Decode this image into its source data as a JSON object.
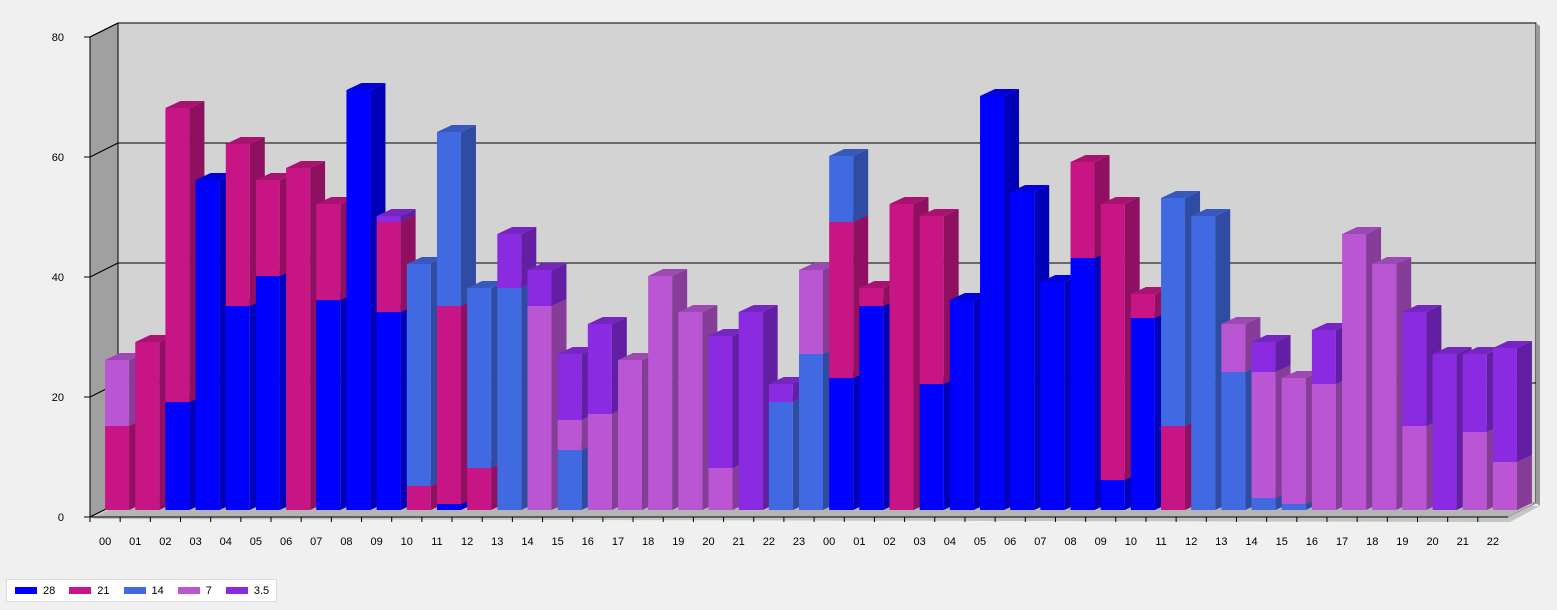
{
  "chart_data": {
    "type": "bar",
    "stacked": true,
    "three_d": true,
    "title": "",
    "xlabel": "",
    "ylabel": "",
    "ylim": [
      0,
      80
    ],
    "yticks": [
      0,
      20,
      40,
      60,
      80
    ],
    "grid": true,
    "legend_position": "bottom-left",
    "categories": [
      "00",
      "01",
      "02",
      "03",
      "04",
      "05",
      "06",
      "07",
      "08",
      "09",
      "10",
      "11",
      "12",
      "13",
      "14",
      "15",
      "16",
      "17",
      "18",
      "19",
      "20",
      "21",
      "22",
      "23",
      "00",
      "01",
      "02",
      "03",
      "04",
      "05",
      "06",
      "07",
      "08",
      "09",
      "10",
      "11",
      "12",
      "13",
      "14",
      "15",
      "16",
      "17",
      "18",
      "19",
      "20",
      "21",
      "22"
    ],
    "series": [
      {
        "name": "28",
        "color": "#0000ff",
        "values": [
          0,
          0,
          18,
          55,
          34,
          39,
          0,
          35,
          70,
          33,
          0,
          1,
          0,
          0,
          0,
          0,
          0,
          0,
          0,
          0,
          0,
          0,
          0,
          0,
          22,
          34,
          0,
          21,
          35,
          69,
          53,
          38,
          42,
          5,
          32,
          0,
          0,
          0,
          0,
          0,
          0,
          0,
          0,
          0,
          0,
          0,
          0
        ]
      },
      {
        "name": "21",
        "color": "#c71585",
        "values": [
          14,
          28,
          49,
          0,
          27,
          16,
          57,
          16,
          0,
          15,
          4,
          33,
          7,
          0,
          0,
          0,
          0,
          0,
          0,
          0,
          0,
          0,
          0,
          0,
          26,
          3,
          51,
          28,
          0,
          0,
          0,
          0,
          16,
          46,
          4,
          14,
          0,
          0,
          0,
          0,
          0,
          0,
          0,
          0,
          0,
          0,
          0
        ]
      },
      {
        "name": "14",
        "color": "#4169e1",
        "values": [
          0,
          0,
          0,
          0,
          0,
          0,
          0,
          0,
          0,
          0,
          37,
          29,
          30,
          37,
          0,
          10,
          0,
          0,
          0,
          0,
          0,
          0,
          18,
          26,
          11,
          0,
          0,
          0,
          0,
          0,
          0,
          0,
          0,
          0,
          0,
          38,
          49,
          23,
          2,
          1,
          0,
          0,
          0,
          0,
          0,
          0,
          0
        ]
      },
      {
        "name": "7",
        "color": "#ba55d3",
        "values": [
          11,
          0,
          0,
          0,
          0,
          0,
          0,
          0,
          0,
          0,
          0,
          0,
          0,
          0,
          34,
          5,
          16,
          25,
          39,
          33,
          7,
          0,
          0,
          14,
          0,
          0,
          0,
          0,
          0,
          0,
          0,
          0,
          0,
          0,
          0,
          0,
          0,
          8,
          21,
          21,
          21,
          46,
          41,
          14,
          0,
          13,
          8
        ]
      },
      {
        "name": "3.5",
        "color": "#8a2be2",
        "values": [
          0,
          0,
          0,
          0,
          0,
          0,
          0,
          0,
          0,
          1,
          0,
          0,
          0,
          9,
          6,
          11,
          15,
          0,
          0,
          0,
          22,
          33,
          3,
          0,
          0,
          0,
          0,
          0,
          0,
          0,
          0,
          0,
          0,
          0,
          0,
          0,
          0,
          0,
          5,
          0,
          9,
          0,
          0,
          19,
          26,
          13,
          19
        ]
      }
    ]
  }
}
